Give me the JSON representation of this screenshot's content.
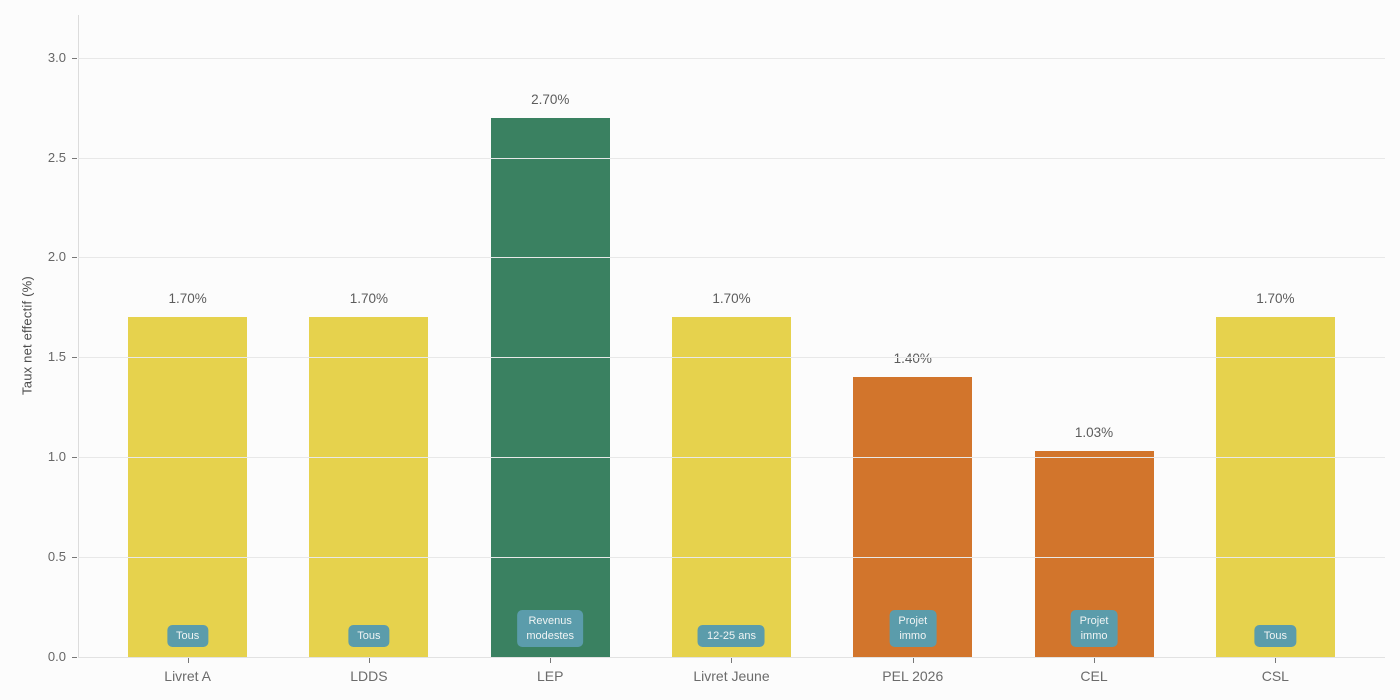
{
  "chart_data": {
    "type": "bar",
    "title": "",
    "xlabel": "",
    "ylabel": "Taux net effectif (%)",
    "categories": [
      "Livret A",
      "LDDS",
      "LEP",
      "Livret Jeune",
      "PEL 2026",
      "CEL",
      "CSL"
    ],
    "values": [
      1.7,
      1.7,
      2.7,
      1.7,
      1.4,
      1.03,
      1.7
    ],
    "value_labels": [
      "1.70%",
      "1.70%",
      "2.70%",
      "1.70%",
      "1.40%",
      "1.03%",
      "1.70%"
    ],
    "bar_colors": [
      "#e6d24d",
      "#e6d24d",
      "#3a8161",
      "#e6d24d",
      "#d2752c",
      "#d2752c",
      "#e6d24d"
    ],
    "badges": [
      [
        "Tous"
      ],
      [
        "Tous"
      ],
      [
        "Revenus",
        "modestes"
      ],
      [
        "12-25 ans"
      ],
      [
        "Projet",
        "immo"
      ],
      [
        "Projet",
        "immo"
      ],
      [
        "Tous"
      ]
    ],
    "badge_color": "#5b9cab",
    "yticks": [
      0.0,
      0.5,
      1.0,
      1.5,
      2.0,
      2.5,
      3.0
    ],
    "ytick_labels": [
      "0.0",
      "0.5",
      "1.0",
      "1.5",
      "2.0",
      "2.5",
      "3.0"
    ],
    "ylim": [
      0,
      3.21
    ],
    "grid": true,
    "grid_over_bars": true,
    "legend": false,
    "colors": {
      "standard_bar": "#e6d24d",
      "lep_bar": "#3a8161",
      "immo_bar": "#d2752c",
      "badge": "#5b9cab",
      "grid": "#e8e8e8",
      "axis": "#dcdcdc",
      "text": "#666666"
    }
  }
}
